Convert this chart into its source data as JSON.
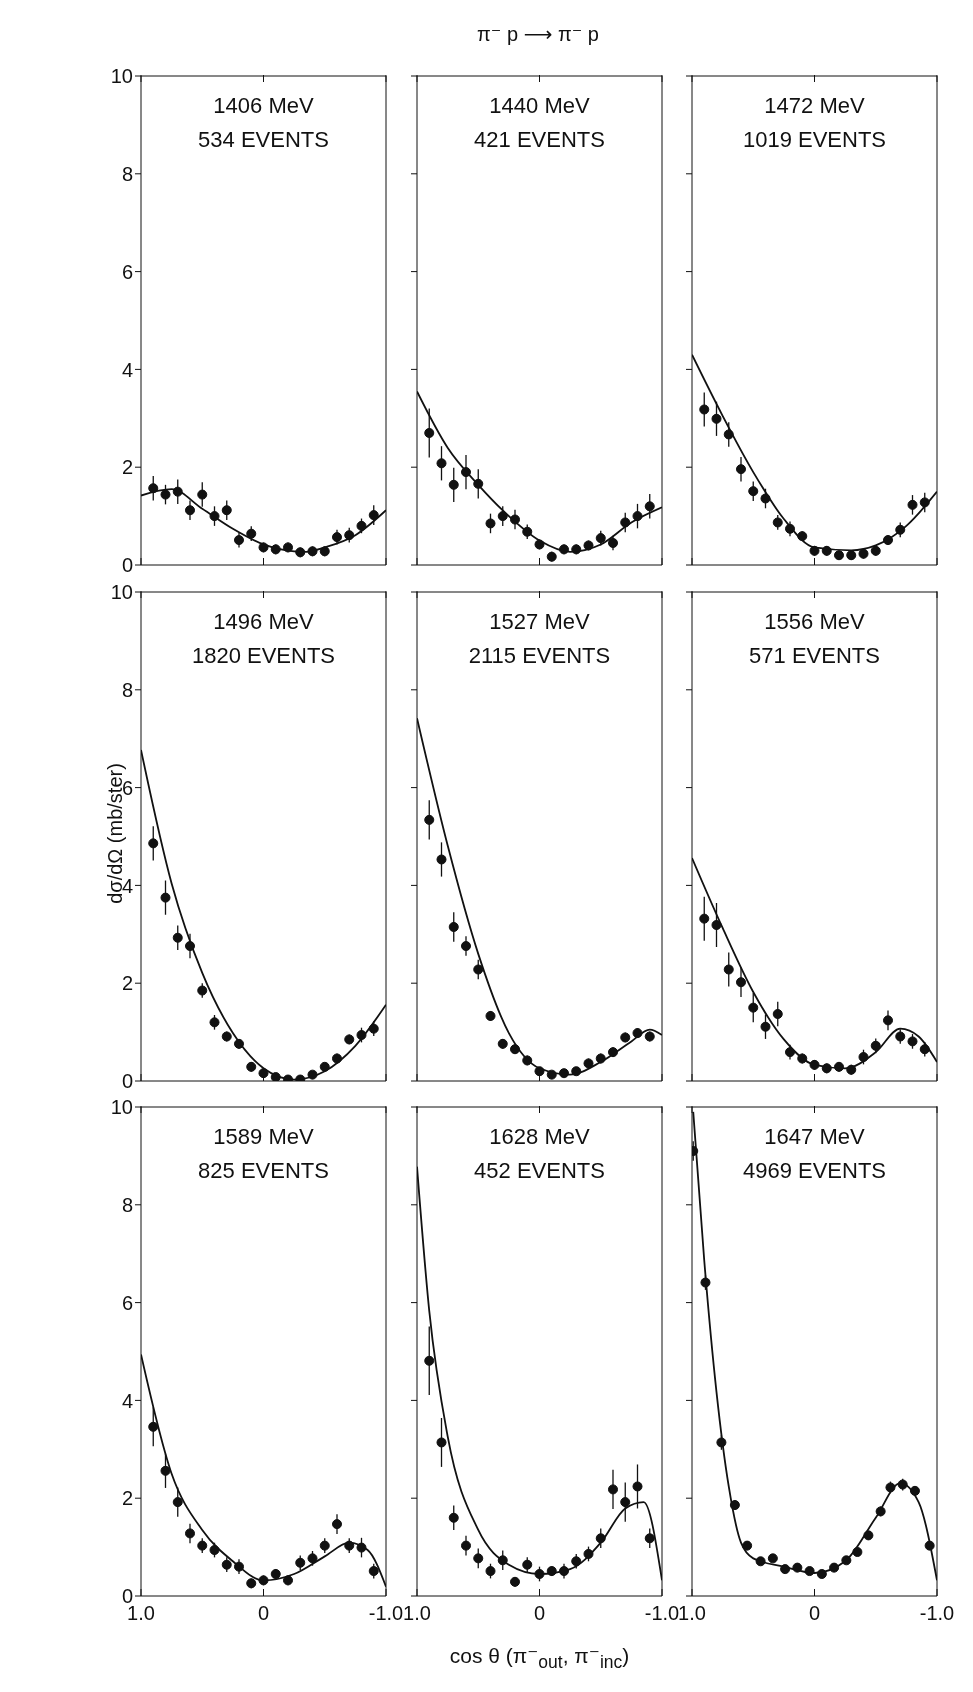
{
  "chart_data": [
    {
      "type": "other",
      "title": "π⁻ p ⟶ π⁻ p"
    },
    {
      "type": "scatter",
      "annotations": [
        "1406 MeV",
        "534 EVENTS"
      ],
      "xlim": [
        1,
        -1
      ],
      "ylim": [
        0,
        10
      ],
      "yticks": [
        0,
        2,
        4,
        6,
        8,
        10
      ],
      "xticks": [
        {
          "value": 1,
          "label": null
        },
        {
          "value": 0,
          "label": null
        },
        {
          "value": -1,
          "label": null
        }
      ],
      "tick_labels": "y",
      "line_style": "solid",
      "series": [
        {
          "type": "scatter",
          "marker": "circle",
          "color": "#111111",
          "x": [
            0.9,
            0.8,
            0.7,
            0.6,
            0.5,
            0.4,
            0.3,
            0.2,
            0.1,
            0,
            -0.1,
            -0.2,
            -0.3,
            -0.4,
            -0.5,
            -0.6,
            -0.7,
            -0.8,
            -0.9
          ],
          "values": [
            1.57,
            1.44,
            1.5,
            1.12,
            1.44,
            1.0,
            1.12,
            0.51,
            0.64,
            0.36,
            0.32,
            0.36,
            0.26,
            0.28,
            0.28,
            0.57,
            0.61,
            0.8,
            1.02
          ],
          "errors": [
            0.25,
            0.2,
            0.25,
            0.2,
            0.25,
            0.2,
            0.2,
            0.15,
            0.15,
            0.1,
            0.1,
            0.1,
            0.1,
            0.1,
            0.1,
            0.15,
            0.15,
            0.15,
            0.2
          ]
        },
        {
          "type": "line",
          "color": "#111111",
          "x": [
            1,
            0.75,
            0.5,
            0.25,
            0,
            -0.25,
            -0.35,
            -0.5,
            -0.75,
            -1
          ],
          "values": [
            1.42,
            1.55,
            1.15,
            0.74,
            0.42,
            0.28,
            0.27,
            0.36,
            0.61,
            1.12
          ]
        }
      ]
    },
    {
      "type": "scatter",
      "annotations": [
        "1440 MeV",
        "421 EVENTS"
      ],
      "xlim": [
        1,
        -1
      ],
      "ylim": [
        0,
        10
      ],
      "yticks": [
        0,
        2,
        4,
        6,
        8,
        10
      ],
      "xticks": [
        {
          "value": 1,
          "label": null
        },
        {
          "value": 0,
          "label": null
        },
        {
          "value": -1,
          "label": null
        }
      ],
      "tick_labels": false,
      "line_style": "solid",
      "series": [
        {
          "type": "scatter",
          "marker": "circle",
          "color": "#111111",
          "x": [
            0.9,
            0.8,
            0.7,
            0.6,
            0.5,
            0.4,
            0.3,
            0.2,
            0.1,
            0,
            -0.1,
            -0.2,
            -0.3,
            -0.4,
            -0.5,
            -0.6,
            -0.7,
            -0.8,
            -0.9
          ],
          "values": [
            2.7,
            2.08,
            1.64,
            1.9,
            1.66,
            0.85,
            1.0,
            0.93,
            0.68,
            0.42,
            0.17,
            0.32,
            0.32,
            0.4,
            0.55,
            0.45,
            0.87,
            1.0,
            1.2
          ],
          "errors": [
            0.5,
            0.35,
            0.35,
            0.35,
            0.3,
            0.2,
            0.2,
            0.2,
            0.15,
            0.1,
            0.1,
            0.1,
            0.1,
            0.1,
            0.15,
            0.15,
            0.2,
            0.25,
            0.25
          ]
        },
        {
          "type": "line",
          "color": "#111111",
          "x": [
            1,
            0.75,
            0.5,
            0.25,
            0,
            -0.25,
            -0.5,
            -0.75,
            -1
          ],
          "values": [
            3.55,
            2.4,
            1.64,
            1.0,
            0.5,
            0.27,
            0.42,
            0.87,
            1.18
          ]
        }
      ]
    },
    {
      "type": "scatter",
      "annotations": [
        "1472 MeV",
        "1019 EVENTS"
      ],
      "xlim": [
        1,
        -1
      ],
      "ylim": [
        0,
        10
      ],
      "yticks": [
        0,
        2,
        4,
        6,
        8,
        10
      ],
      "xticks": [
        {
          "value": 1,
          "label": null
        },
        {
          "value": 0,
          "label": null
        },
        {
          "value": -1,
          "label": null
        }
      ],
      "tick_labels": false,
      "line_style": "solid",
      "series": [
        {
          "type": "scatter",
          "marker": "circle",
          "color": "#111111",
          "x": [
            0.9,
            0.8,
            0.7,
            0.6,
            0.5,
            0.4,
            0.3,
            0.2,
            0.1,
            0,
            -0.1,
            -0.2,
            -0.3,
            -0.4,
            -0.5,
            -0.6,
            -0.7,
            -0.8,
            -0.9
          ],
          "values": [
            3.18,
            2.99,
            2.67,
            1.96,
            1.51,
            1.36,
            0.87,
            0.74,
            0.59,
            0.29,
            0.29,
            0.2,
            0.2,
            0.23,
            0.29,
            0.51,
            0.72,
            1.23,
            1.28
          ],
          "errors": [
            0.35,
            0.35,
            0.25,
            0.25,
            0.2,
            0.2,
            0.15,
            0.15,
            0.1,
            0.1,
            0.1,
            0.1,
            0.1,
            0.1,
            0.1,
            0.1,
            0.15,
            0.2,
            0.2
          ]
        },
        {
          "type": "line",
          "color": "#111111",
          "x": [
            1,
            0.75,
            0.5,
            0.25,
            0,
            -0.3,
            -0.5,
            -0.75,
            -1
          ],
          "values": [
            4.3,
            3.05,
            1.9,
            0.94,
            0.36,
            0.3,
            0.4,
            0.8,
            1.5
          ]
        }
      ]
    },
    {
      "type": "scatter",
      "ylabel": "dσ/dΩ (mb/ster)",
      "annotations": [
        "1496 MeV",
        "1820 EVENTS"
      ],
      "xlim": [
        1,
        -1
      ],
      "ylim": [
        0,
        10
      ],
      "yticks": [
        0,
        2,
        4,
        6,
        8,
        10
      ],
      "xticks": [
        {
          "value": 1,
          "label": null
        },
        {
          "value": 0,
          "label": null
        },
        {
          "value": -1,
          "label": null
        }
      ],
      "tick_labels": "y",
      "line_style": "solid",
      "series": [
        {
          "type": "scatter",
          "marker": "circle",
          "color": "#111111",
          "x": [
            0.9,
            0.8,
            0.7,
            0.6,
            0.5,
            0.4,
            0.3,
            0.2,
            0.1,
            0,
            -0.1,
            -0.2,
            -0.3,
            -0.4,
            -0.5,
            -0.6,
            -0.7,
            -0.8,
            -0.9
          ],
          "values": [
            4.86,
            3.75,
            2.93,
            2.76,
            1.85,
            1.2,
            0.91,
            0.76,
            0.29,
            0.16,
            0.08,
            0.03,
            0.03,
            0.13,
            0.29,
            0.46,
            0.85,
            0.94,
            1.07
          ],
          "errors": [
            0.35,
            0.35,
            0.25,
            0.25,
            0.15,
            0.15,
            0.1,
            0.1,
            0.1,
            0.05,
            0.05,
            null,
            null,
            0.05,
            0.05,
            0.1,
            0.1,
            0.15,
            0.15
          ]
        },
        {
          "type": "line",
          "color": "#111111",
          "x": [
            1,
            0.75,
            0.5,
            0.25,
            0,
            -0.25,
            -0.5,
            -0.75,
            -1
          ],
          "values": [
            6.77,
            4.04,
            2.21,
            0.98,
            0.26,
            0.03,
            0.2,
            0.72,
            1.56
          ]
        }
      ]
    },
    {
      "type": "scatter",
      "annotations": [
        "1527 MeV",
        "2115 EVENTS"
      ],
      "xlim": [
        1,
        -1
      ],
      "ylim": [
        0,
        10
      ],
      "yticks": [
        0,
        2,
        4,
        6,
        8,
        10
      ],
      "xticks": [
        {
          "value": 1,
          "label": null
        },
        {
          "value": 0,
          "label": null
        },
        {
          "value": -1,
          "label": null
        }
      ],
      "tick_labels": false,
      "line_style": "solid",
      "series": [
        {
          "type": "scatter",
          "marker": "circle",
          "color": "#111111",
          "x": [
            0.9,
            0.8,
            0.7,
            0.6,
            0.5,
            0.4,
            0.3,
            0.2,
            0.1,
            0,
            -0.1,
            -0.2,
            -0.3,
            -0.4,
            -0.5,
            -0.6,
            -0.7,
            -0.8,
            -0.9
          ],
          "values": [
            5.34,
            4.53,
            3.15,
            2.76,
            2.28,
            1.33,
            0.76,
            0.65,
            0.42,
            0.2,
            0.13,
            0.16,
            0.2,
            0.36,
            0.46,
            0.59,
            0.89,
            0.98,
            0.91
          ],
          "errors": [
            0.4,
            0.35,
            0.3,
            0.2,
            0.2,
            0.1,
            0.1,
            0.1,
            0.1,
            0.05,
            0.05,
            0.05,
            0.05,
            0.1,
            0.1,
            0.1,
            0.1,
            0.1,
            0.1
          ]
        },
        {
          "type": "line",
          "color": "#111111",
          "x": [
            1,
            0.75,
            0.5,
            0.25,
            0,
            -0.25,
            -0.5,
            -0.75,
            -0.9,
            -1
          ],
          "values": [
            7.42,
            4.82,
            2.6,
            0.98,
            0.26,
            0.13,
            0.39,
            0.81,
            1.05,
            0.94
          ]
        }
      ]
    },
    {
      "type": "scatter",
      "annotations": [
        "1556 MeV",
        "571 EVENTS"
      ],
      "xlim": [
        1,
        -1
      ],
      "ylim": [
        0,
        10
      ],
      "yticks": [
        0,
        2,
        4,
        6,
        8,
        10
      ],
      "xticks": [
        {
          "value": 1,
          "label": null
        },
        {
          "value": 0,
          "label": null
        },
        {
          "value": -1,
          "label": null
        }
      ],
      "tick_labels": false,
      "line_style": "solid",
      "series": [
        {
          "type": "scatter",
          "marker": "circle",
          "color": "#111111",
          "x": [
            0.9,
            0.8,
            0.7,
            0.6,
            0.5,
            0.4,
            0.3,
            0.2,
            0.1,
            0,
            -0.1,
            -0.2,
            -0.3,
            -0.4,
            -0.5,
            -0.6,
            -0.7,
            -0.8,
            -0.9
          ],
          "values": [
            3.32,
            3.19,
            2.28,
            2.02,
            1.5,
            1.11,
            1.37,
            0.59,
            0.46,
            0.33,
            0.26,
            0.29,
            0.23,
            0.49,
            0.72,
            1.24,
            0.91,
            0.81,
            0.65
          ],
          "errors": [
            0.45,
            0.45,
            0.35,
            0.3,
            0.3,
            0.25,
            0.25,
            0.15,
            0.1,
            0.1,
            0.1,
            0.1,
            0.1,
            0.15,
            0.15,
            0.2,
            0.15,
            0.15,
            0.15
          ]
        },
        {
          "type": "line",
          "color": "#111111",
          "x": [
            1,
            0.75,
            0.5,
            0.25,
            0,
            -0.25,
            -0.5,
            -0.7,
            -0.85,
            -1
          ],
          "values": [
            4.56,
            3.13,
            1.82,
            0.85,
            0.33,
            0.26,
            0.59,
            1.07,
            0.91,
            0.39
          ]
        }
      ]
    },
    {
      "type": "scatter",
      "annotations": [
        "1589 MeV",
        "825 EVENTS"
      ],
      "xlim": [
        1,
        -1
      ],
      "ylim": [
        0,
        10
      ],
      "yticks": [
        0,
        2,
        4,
        6,
        8,
        10
      ],
      "xticks": [
        {
          "value": 1,
          "label": "1.0"
        },
        {
          "value": 0,
          "label": "0"
        },
        {
          "value": -1,
          "label": "-1.0"
        }
      ],
      "line_style": "solid",
      "series": [
        {
          "type": "scatter",
          "marker": "circle",
          "color": "#111111",
          "x": [
            0.9,
            0.8,
            0.7,
            0.6,
            0.5,
            0.4,
            0.3,
            0.2,
            0.1,
            0,
            -0.1,
            -0.2,
            -0.3,
            -0.4,
            -0.5,
            -0.6,
            -0.7,
            -0.8,
            -0.9
          ],
          "values": [
            3.46,
            2.56,
            1.92,
            1.28,
            1.03,
            0.94,
            0.64,
            0.6,
            0.26,
            0.32,
            0.45,
            0.32,
            0.68,
            0.77,
            1.03,
            1.47,
            1.03,
            0.99,
            0.51
          ],
          "errors": [
            0.4,
            0.35,
            0.3,
            0.2,
            0.15,
            0.15,
            0.15,
            0.15,
            0.1,
            0.1,
            0.1,
            0.1,
            0.15,
            0.15,
            0.15,
            0.2,
            0.15,
            0.2,
            0.15
          ]
        },
        {
          "type": "line",
          "color": "#111111",
          "x": [
            1,
            0.75,
            0.5,
            0.25,
            0,
            -0.25,
            -0.5,
            -0.7,
            -0.85,
            -1
          ],
          "values": [
            4.94,
            2.5,
            1.35,
            0.71,
            0.32,
            0.45,
            0.81,
            1.09,
            0.94,
            0.19
          ]
        }
      ]
    },
    {
      "type": "scatter",
      "xlabel": "cos θ (π⁻$_{out}$, π⁻$_{inc}$)",
      "annotations": [
        "1628 MeV",
        "452 EVENTS"
      ],
      "xlim": [
        1,
        -1
      ],
      "ylim": [
        0,
        10
      ],
      "yticks": [
        0,
        2,
        4,
        6,
        8,
        10
      ],
      "xticks": [
        {
          "value": 1,
          "label": "1.0"
        },
        {
          "value": 0,
          "label": "0"
        },
        {
          "value": -1,
          "label": "-1.0"
        }
      ],
      "tick_labels": "x",
      "line_style": "solid",
      "series": [
        {
          "type": "scatter",
          "marker": "circle",
          "color": "#111111",
          "x": [
            0.9,
            0.8,
            0.7,
            0.6,
            0.5,
            0.4,
            0.3,
            0.2,
            0.1,
            0,
            -0.1,
            -0.2,
            -0.3,
            -0.4,
            -0.5,
            -0.6,
            -0.7,
            -0.8,
            -0.9
          ],
          "values": [
            4.81,
            3.14,
            1.6,
            1.03,
            0.77,
            0.51,
            0.73,
            0.29,
            0.64,
            0.45,
            0.51,
            0.51,
            0.71,
            0.86,
            1.18,
            2.18,
            1.92,
            2.24,
            1.18
          ],
          "errors": [
            0.7,
            0.5,
            0.25,
            0.2,
            0.2,
            0.15,
            0.2,
            0.1,
            0.15,
            0.15,
            0.1,
            0.15,
            0.15,
            0.15,
            0.2,
            0.4,
            0.4,
            0.45,
            0.2
          ]
        },
        {
          "type": "line",
          "color": "#111111",
          "x": [
            1,
            0.9,
            0.75,
            0.5,
            0.25,
            0,
            -0.25,
            -0.5,
            -0.7,
            -0.85,
            -1
          ],
          "values": [
            8.78,
            5.83,
            3.27,
            1.35,
            0.64,
            0.45,
            0.55,
            1.09,
            1.79,
            1.92,
            0.32
          ]
        }
      ]
    },
    {
      "type": "scatter",
      "annotations": [
        "1647 MeV",
        "4969 EVENTS"
      ],
      "xlim": [
        1,
        -1
      ],
      "ylim": [
        0,
        10
      ],
      "yticks": [
        0,
        2,
        4,
        6,
        8,
        10
      ],
      "xticks": [
        {
          "value": 1,
          "label": "1.0"
        },
        {
          "value": 0,
          "label": "0"
        },
        {
          "value": -1,
          "label": "-1.0"
        }
      ],
      "tick_labels": "x",
      "line_style": "solid",
      "series": [
        {
          "type": "scatter",
          "marker": "circle",
          "color": "#111111",
          "x": [
            0.99,
            0.89,
            0.76,
            0.65,
            0.55,
            0.44,
            0.34,
            0.24,
            0.14,
            0.04,
            -0.06,
            -0.16,
            -0.26,
            -0.35,
            -0.44,
            -0.54,
            -0.62,
            -0.72,
            -0.82,
            -0.94
          ],
          "values": [
            9.1,
            6.41,
            3.14,
            1.86,
            1.03,
            0.71,
            0.77,
            0.55,
            0.58,
            0.51,
            0.45,
            0.58,
            0.73,
            0.9,
            1.24,
            1.73,
            2.22,
            2.28,
            2.15,
            1.03
          ],
          "errors": [
            0.2,
            0.15,
            0.15,
            0.1,
            0.08,
            0.05,
            0.05,
            0.05,
            0.05,
            0.05,
            0.05,
            0.05,
            0.05,
            0.05,
            0.08,
            0.1,
            0.12,
            0.12,
            0.1,
            0.08
          ]
        },
        {
          "type": "line",
          "color": "#111111",
          "x": [
            0.99,
            0.9,
            0.8,
            0.7,
            0.6,
            0.5,
            0.25,
            0,
            -0.25,
            -0.5,
            -0.7,
            -0.85,
            -1
          ],
          "values": [
            9.9,
            6.86,
            4.17,
            2.24,
            1.09,
            0.77,
            0.6,
            0.47,
            0.71,
            1.6,
            2.31,
            1.92,
            0.32
          ]
        }
      ]
    }
  ]
}
